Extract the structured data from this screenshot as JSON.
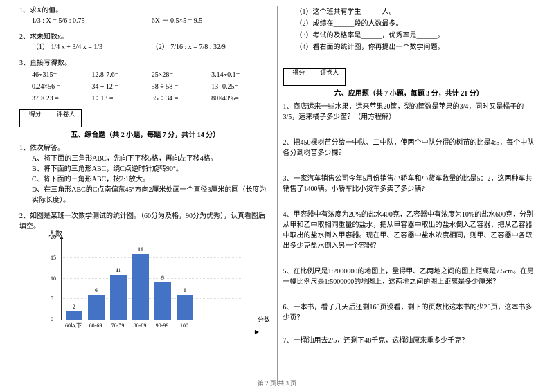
{
  "col1": {
    "q1": {
      "num": "1、求X的值。",
      "eq1": "1/3 : X = 5/6 : 0.75",
      "eq2": "6X － 0.5×5 = 9.5"
    },
    "q2": {
      "num": "2、求未知数x。",
      "eq1": "（1） 1/4 x + 3/4 x = 1/3",
      "eq2": "（2） 7/16 : x = 7/8 : 32/9"
    },
    "q3": {
      "num": "3、直接写得数。",
      "r1a": "46÷315=",
      "r1b": "12.8-7.6=",
      "r1c": "25×28=",
      "r1d": "3.14÷0.1=",
      "r2a": "0.24×56 =",
      "r2b": "34 ÷ 12 =",
      "r2c": "58 ÷ 58 =",
      "r2d": "13 -0.25=",
      "r3a": "37 × 23 =",
      "r3b": "1÷ 13 =",
      "r3c": "35 ÷ 34 =",
      "r3d": "80×40%="
    },
    "score": {
      "l1": "得分",
      "l2": "评卷人"
    },
    "sec5": {
      "title": "五、综合题（共 2 小题，每题 7 分，共计 14 分）",
      "q1": "1、依次解答。",
      "q1a": "A、将下面的三角形ABC，先向下平移5格，再向左平移4格。",
      "q1b": "B、将下面的三角形ABC，绕C点逆时针旋转90°。",
      "q1c": "C、将下面的三角形ABC，按2:1放大。",
      "q1d": "D、在三角形ABC的C点南偏东45°方向2厘米处画一个直径3厘米的圆（长度为实际长度）。",
      "q2": "2、如图是某班一次数学测试的统计图。（60分为及格，90分为优秀），认真看图后填空。"
    },
    "chart": {
      "ylabel": "人数",
      "xlabel": "分数",
      "categories": [
        "60以下",
        "60-69",
        "70-79",
        "80-89",
        "90-99",
        "100"
      ],
      "values": [
        2,
        6,
        11,
        16,
        9,
        6
      ],
      "ymax": 20,
      "bar_color": "#4472c4"
    }
  },
  "col2": {
    "sub": {
      "s1": "（1）这个班共有学生______人。",
      "s2": "（2）成绩在______段的人数最多。",
      "s3": "（3）考试的及格率是______，优秀率是______。",
      "s4": "（4）看右面的统计图，你再提出一个数学问题。"
    },
    "score": {
      "l1": "得分",
      "l2": "评卷人"
    },
    "sec6": {
      "title": "六、应用题（共 7 小题，每题 3 分，共计 21 分）",
      "q1": "1、商店运来一些水果，运来苹果20筐，梨的筐数是苹果的3/4，同时又是橘子的3/5，运来橘子多少筐？（用方程解）",
      "q2": "2、把450棵树苗分给一中队、二中队，使两个中队分得的树苗的比是4:5，每个中队各分到树苗多少棵？",
      "q3": "3、一家汽车销售公司今年5月份销售小轿车和小货车数量的比是5：2，这两种车共销售了1400辆。小轿车比小货车多卖了多少辆?",
      "q4": "4、甲容器中有浓度为20%的盐水400克，乙容器中有浓度为10%的盐水600克，分别从甲和乙中取相同重量的盐水，把从甲容器中取出的盐水倒入乙容器，把从乙容器中取出的盐水倒入甲容器。现在甲、乙容器中盐水浓度相同，则甲、乙容器中各取出多少克盐水倒入另一个容器？",
      "q5": "5、在比例尺是1:2000000的地图上，量得甲、乙两地之间的图上距离是7.5cm。在另一幅比例尺是1:5000000的地图上，这两地之间的图上距离是多少厘米？",
      "q6": "6、一本书，看了几天后还剩160页没看，剩下的页数比这本书的少20页，这本书多少页？",
      "q7": "7、一桶油用去2/5，还剩下48千克，这桶油原来重多少千克？"
    }
  },
  "footer": "第 2 页 共 3 页"
}
